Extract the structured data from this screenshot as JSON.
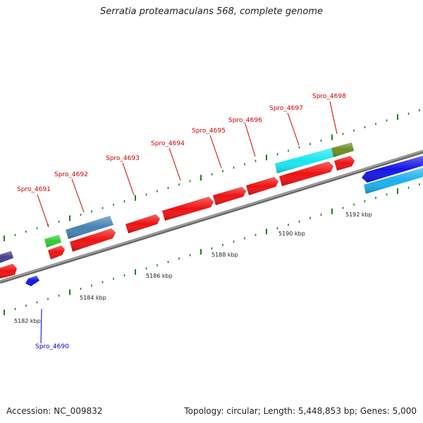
{
  "title": "Serratia proteamaculans 568, complete genome",
  "footer": {
    "accession": "Accession: NC_009832",
    "summary": "Topology: circular; Length: 5,448,853 bp; Genes: 5,000"
  },
  "colors": {
    "backbone": "#8a8a8a",
    "tick": "#1e7f1e",
    "label_fwd": "#cc0000",
    "label_rev": "#0000cc"
  },
  "scale_labels": [
    {
      "kbp": 5182,
      "text": "5182 kbp"
    },
    {
      "kbp": 5184,
      "text": "5184 kbp"
    },
    {
      "kbp": 5186,
      "text": "5186 kbp"
    },
    {
      "kbp": 5188,
      "text": "5188 kbp"
    },
    {
      "kbp": 5190,
      "text": "5190 kbp"
    },
    {
      "kbp": 5192,
      "text": "5192 kbp"
    }
  ],
  "gene_labels": [
    {
      "id": "Spro_4690",
      "text": "Spro_4690",
      "color": "#0000cc"
    },
    {
      "id": "Spro_4691",
      "text": "Spro_4691",
      "color": "#cc0000"
    },
    {
      "id": "Spro_4692",
      "text": "Spro_4692",
      "color": "#cc0000"
    },
    {
      "id": "Spro_4693",
      "text": "Spro_4693",
      "color": "#cc0000"
    },
    {
      "id": "Spro_4694",
      "text": "Spro_4694",
      "color": "#cc0000"
    },
    {
      "id": "Spro_4695",
      "text": "Spro_4695",
      "color": "#cc0000"
    },
    {
      "id": "Spro_4696",
      "text": "Spro_4696",
      "color": "#cc0000"
    },
    {
      "id": "Spro_4697",
      "text": "Spro_4697",
      "color": "#cc0000"
    },
    {
      "id": "Spro_4698",
      "text": "Spro_4698",
      "color": "#cc0000"
    }
  ],
  "features": [
    {
      "name": "cds-rev-blue",
      "color": "#1414e6",
      "strand": "-1"
    },
    {
      "name": "cds-fwd-left",
      "color": "#ee1111",
      "strand": "+1"
    },
    {
      "name": "feature-purple",
      "color": "#4a4090",
      "strand": "+1"
    },
    {
      "name": "cds-4691",
      "color": "#ee1111",
      "strand": "+1"
    },
    {
      "name": "rna-green",
      "color": "#33cc33",
      "strand": "+1"
    },
    {
      "name": "cds-4692",
      "color": "#ee1111",
      "strand": "+1"
    },
    {
      "name": "feature-steelblue",
      "color": "#4682b4",
      "strand": "+1"
    },
    {
      "name": "cds-4693",
      "color": "#ee1111",
      "strand": "+1"
    },
    {
      "name": "cds-4694",
      "color": "#ee1111",
      "strand": "+1"
    },
    {
      "name": "cds-4695",
      "color": "#ee1111",
      "strand": "+1"
    },
    {
      "name": "cds-4696",
      "color": "#ee1111",
      "strand": "+1"
    },
    {
      "name": "cds-4697",
      "color": "#ee1111",
      "strand": "+1"
    },
    {
      "name": "cds-4698",
      "color": "#ee1111",
      "strand": "+1"
    },
    {
      "name": "feature-cyan-4697",
      "color": "#19e6f0",
      "strand": "+1"
    },
    {
      "name": "feature-olive-4698",
      "color": "#6b8e23",
      "strand": "+1"
    },
    {
      "name": "cds-rev-blue-right",
      "color": "#1414e6",
      "strand": "-1"
    },
    {
      "name": "feature-skyblue-right",
      "color": "#19b0f0",
      "strand": "-1"
    }
  ]
}
